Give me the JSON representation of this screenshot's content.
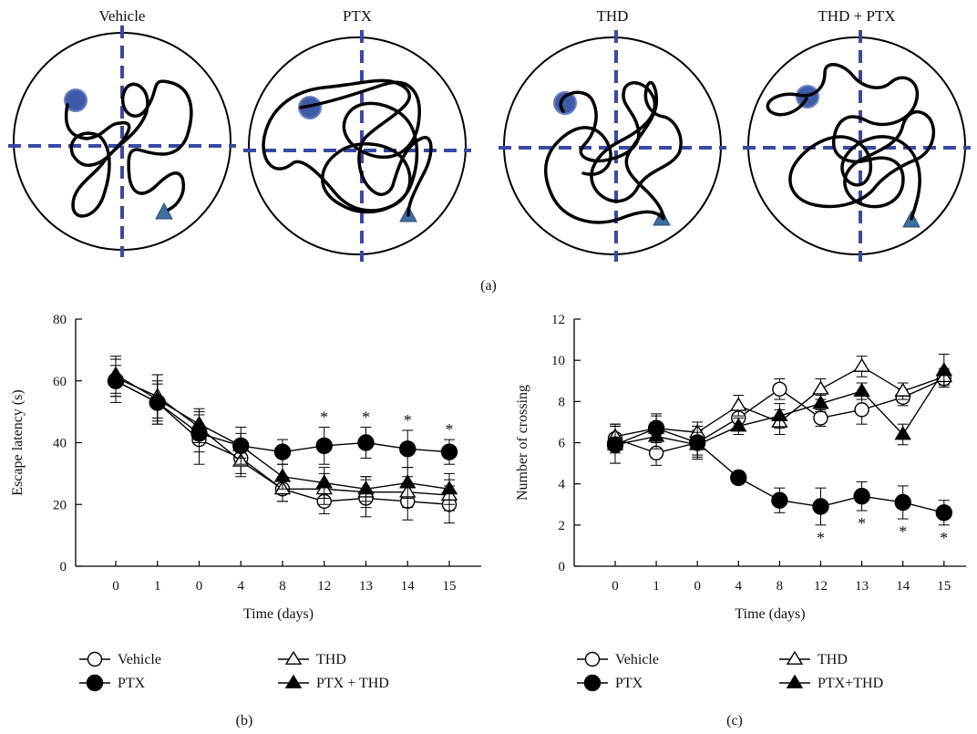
{
  "panel_labels": {
    "a": "(a)",
    "b": "(b)",
    "c": "(c)"
  },
  "maze": {
    "colors": {
      "quadrant_line": "#3a48a6",
      "platform_fill": "#3f5aa8",
      "start_fill": "#3d6e9e",
      "path": "#000000"
    },
    "panels": [
      {
        "title": "Vehicle"
      },
      {
        "title": "PTX"
      },
      {
        "title": "THD"
      },
      {
        "title": "THD + PTX"
      }
    ]
  },
  "chart_data": [
    {
      "type": "line",
      "panel": "(b)",
      "xlabel": "Time (days)",
      "ylabel": "Escape latency (s)",
      "categories": [
        "0",
        "1",
        "0",
        "4",
        "8",
        "12",
        "13",
        "14",
        "15"
      ],
      "ylim": [
        0,
        80
      ],
      "yticks": [
        0,
        20,
        40,
        60,
        80
      ],
      "grid": false,
      "legend": "bottom",
      "significance_marker": "*",
      "significance_indices": [
        5,
        6,
        7,
        8
      ],
      "significance_position": "above",
      "series": [
        {
          "name": "Vehicle",
          "marker": "circle-open",
          "values": [
            60,
            53,
            41,
            35,
            25,
            21,
            22,
            21,
            20
          ],
          "errors": [
            7,
            7,
            8,
            6,
            4,
            4,
            6,
            6,
            6
          ]
        },
        {
          "name": "THD",
          "marker": "triangle-open",
          "values": [
            61,
            55,
            45,
            34,
            25,
            25,
            24,
            24,
            23
          ],
          "errors": [
            6,
            7,
            5,
            4,
            4,
            5,
            5,
            5,
            5
          ]
        },
        {
          "name": "PTX",
          "marker": "circle-filled",
          "values": [
            60,
            53,
            43,
            39,
            37,
            39,
            40,
            38,
            37
          ],
          "errors": [
            5,
            6,
            6,
            6,
            4,
            6,
            5,
            6,
            4
          ]
        },
        {
          "name": "PTX + THD",
          "marker": "triangle-filled",
          "values": [
            62,
            54,
            46,
            39,
            29,
            27,
            25,
            27,
            25
          ],
          "errors": [
            6,
            8,
            5,
            4,
            4,
            5,
            4,
            5,
            5
          ]
        }
      ]
    },
    {
      "type": "line",
      "panel": "(c)",
      "xlabel": "Time (days)",
      "ylabel": "Number of crossing",
      "categories": [
        "0",
        "1",
        "0",
        "4",
        "8",
        "12",
        "13",
        "14",
        "15"
      ],
      "ylim": [
        0,
        12
      ],
      "yticks": [
        0,
        2,
        4,
        6,
        8,
        10,
        12
      ],
      "grid": false,
      "legend": "bottom",
      "significance_marker": "*",
      "significance_indices": [
        5,
        6,
        7,
        8
      ],
      "significance_position": "below",
      "series": [
        {
          "name": "Vehicle",
          "marker": "circle-open",
          "values": [
            6.2,
            5.5,
            6.0,
            7.2,
            8.6,
            7.2,
            7.6,
            8.2,
            9.1
          ],
          "errors": [
            0.7,
            0.6,
            0.6,
            0.5,
            0.5,
            0.4,
            0.7,
            0.4,
            0.4
          ]
        },
        {
          "name": "THD",
          "marker": "triangle-open",
          "values": [
            6.3,
            6.7,
            6.5,
            7.8,
            7.0,
            8.6,
            9.7,
            8.5,
            9.2
          ],
          "errors": [
            0.6,
            0.6,
            0.5,
            0.5,
            0.6,
            0.5,
            0.5,
            0.4,
            0.4
          ]
        },
        {
          "name": "PTX",
          "marker": "circle-filled",
          "values": [
            5.9,
            6.7,
            6.0,
            4.3,
            3.2,
            2.9,
            3.4,
            3.1,
            2.6
          ],
          "errors": [
            0.9,
            0.7,
            0.8,
            0.3,
            0.6,
            0.9,
            0.7,
            0.8,
            0.6
          ]
        },
        {
          "name": "PTX+THD",
          "marker": "triangle-filled",
          "values": [
            5.9,
            6.3,
            5.9,
            6.8,
            7.3,
            7.9,
            8.5,
            6.4,
            9.5
          ],
          "errors": [
            0.9,
            0.6,
            0.6,
            0.4,
            0.6,
            0.4,
            0.4,
            0.5,
            0.8
          ]
        }
      ]
    }
  ]
}
